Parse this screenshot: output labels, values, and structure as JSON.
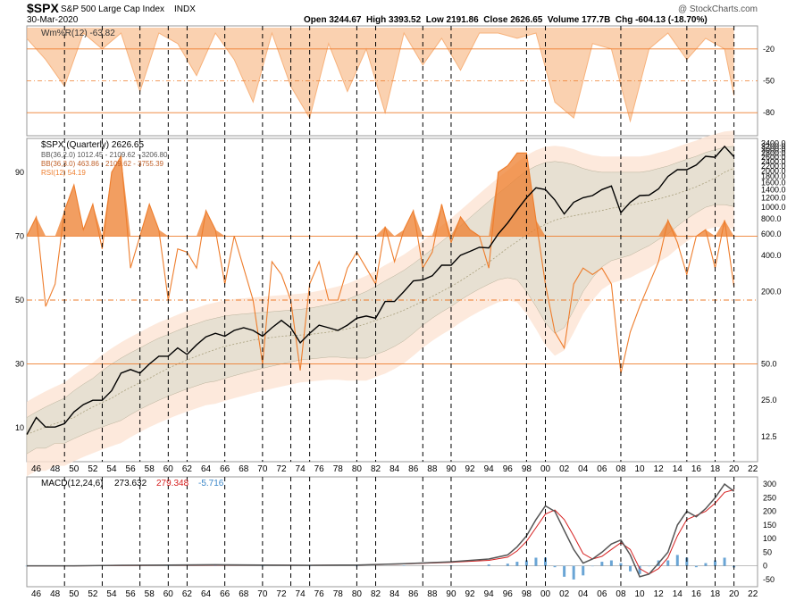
{
  "header": {
    "symbol": "$SPX",
    "name": "S&P 500 Large Cap Index",
    "exchange": "INDX",
    "date": "30-Mar-2020",
    "ohlc": "Open 3244.67  High 3393.52  Low 2191.86  Close 2626.65  Volume 177.7B  Chg -604.13 (-18.70%)",
    "watermark": "@ StockCharts.com"
  },
  "colors": {
    "orange": "#ee7d2c",
    "orange_fill": "#f7b27c",
    "orange_light": "#fde3d3",
    "band_fill": "#e4dfd0",
    "macd_line": "#555555",
    "signal_line": "#d62020",
    "hist": "#6aa5d5",
    "grid": "#cccccc"
  },
  "chart_data": [
    {
      "type": "area",
      "panel": "Williams %R",
      "legend": "Wm%R(12) -63.82",
      "y_ticks": [
        "-20",
        "-50",
        "-80"
      ],
      "ylim": [
        -100,
        0
      ],
      "reference_lines": [
        -20,
        -50,
        -80
      ],
      "x": [
        1945,
        1947,
        1949,
        1951,
        1953,
        1955,
        1957,
        1959,
        1961,
        1963,
        1965,
        1967,
        1969,
        1971,
        1973,
        1975,
        1977,
        1979,
        1981,
        1983,
        1985,
        1987,
        1989,
        1991,
        1993,
        1995,
        1997,
        1999,
        2001,
        2003,
        2005,
        2007,
        2009,
        2011,
        2013,
        2015,
        2017,
        2019,
        2020
      ],
      "values": [
        -10,
        -30,
        -55,
        -5,
        -20,
        -5,
        -60,
        -5,
        -15,
        -45,
        -5,
        -30,
        -70,
        -5,
        -55,
        -85,
        -15,
        -60,
        -20,
        -80,
        -5,
        -35,
        -10,
        -40,
        -5,
        -5,
        -10,
        -5,
        -70,
        -85,
        -15,
        -20,
        -88,
        -20,
        -5,
        -30,
        -10,
        -20,
        -63.82
      ]
    },
    {
      "type": "line",
      "panel": "Price",
      "scale": "log",
      "legend": [
        "$SPX (Quarterly) 2626.65",
        "BB(36,2.0) 1012.45 - 2109.62 - 3206.80",
        "BB(36,3.0) 463.86 - 2109.62 - 3755.39",
        "RSI(12) 54.19"
      ],
      "price_ticks": [
        "3400.0",
        "3200.0",
        "3000.0",
        "2800.0",
        "2600.0",
        "2400.0",
        "2200.0",
        "2000.0",
        "1800.0",
        "1600.0",
        "1400.0",
        "1200.0",
        "1000.0",
        "800.0",
        "600.0",
        "400.0",
        "200.0",
        "50.0",
        "25.0",
        "12.5"
      ],
      "rsi_ticks": [
        "90",
        "70",
        "50",
        "30",
        "10"
      ],
      "rsi_reference_lines": [
        70,
        50,
        30
      ],
      "x_ticks": [
        "46",
        "48",
        "50",
        "52",
        "54",
        "56",
        "58",
        "60",
        "62",
        "64",
        "66",
        "68",
        "70",
        "72",
        "74",
        "76",
        "78",
        "80",
        "82",
        "84",
        "86",
        "88",
        "90",
        "92",
        "94",
        "96",
        "98",
        "00",
        "02",
        "04",
        "06",
        "08",
        "10",
        "12",
        "14",
        "16",
        "18",
        "20",
        "22"
      ],
      "x": [
        1945,
        1946,
        1947,
        1948,
        1949,
        1950,
        1951,
        1952,
        1953,
        1954,
        1955,
        1956,
        1957,
        1958,
        1959,
        1960,
        1961,
        1962,
        1963,
        1964,
        1965,
        1966,
        1967,
        1968,
        1969,
        1970,
        1971,
        1972,
        1973,
        1974,
        1975,
        1976,
        1977,
        1978,
        1979,
        1980,
        1981,
        1982,
        1983,
        1984,
        1985,
        1986,
        1987,
        1988,
        1989,
        1990,
        1991,
        1992,
        1993,
        1994,
        1995,
        1996,
        1997,
        1998,
        1999,
        2000,
        2001,
        2002,
        2003,
        2004,
        2005,
        2006,
        2007,
        2008,
        2009,
        2010,
        2011,
        2012,
        2013,
        2014,
        2015,
        2016,
        2017,
        2018,
        2019,
        2020
      ],
      "spx": [
        13,
        18,
        15,
        15,
        16,
        20,
        23,
        25,
        25,
        30,
        42,
        45,
        42,
        50,
        58,
        58,
        68,
        60,
        72,
        84,
        90,
        85,
        95,
        100,
        95,
        85,
        100,
        115,
        100,
        75,
        90,
        105,
        100,
        95,
        105,
        120,
        125,
        120,
        165,
        165,
        200,
        245,
        250,
        270,
        330,
        330,
        400,
        430,
        465,
        460,
        600,
        740,
        950,
        1200,
        1450,
        1400,
        1150,
        880,
        1100,
        1200,
        1250,
        1400,
        1500,
        900,
        1100,
        1250,
        1260,
        1420,
        1800,
        2050,
        2050,
        2240,
        2650,
        2600,
        3200,
        2626.65
      ],
      "mid_band": [
        13,
        14,
        15,
        16,
        17,
        18,
        20,
        22,
        24,
        26,
        29,
        32,
        35,
        38,
        42,
        46,
        50,
        54,
        58,
        62,
        66,
        70,
        73,
        76,
        79,
        81,
        83,
        85,
        86,
        87,
        88,
        90,
        92,
        95,
        98,
        102,
        108,
        115,
        122,
        130,
        140,
        152,
        166,
        182,
        200,
        220,
        245,
        275,
        310,
        350,
        400,
        460,
        520,
        590,
        660,
        720,
        780,
        820,
        850,
        880,
        910,
        940,
        980,
        1010,
        1040,
        1080,
        1120,
        1170,
        1230,
        1300,
        1380,
        1480,
        1600,
        1750,
        1950,
        2109.62
      ],
      "bb2_upper": [
        18,
        20,
        22,
        24,
        26,
        30,
        34,
        38,
        44,
        50,
        56,
        62,
        68,
        75,
        82,
        88,
        95,
        102,
        108,
        115,
        120,
        125,
        128,
        130,
        132,
        134,
        136,
        138,
        140,
        142,
        145,
        150,
        156,
        163,
        172,
        185,
        200,
        220,
        245,
        270,
        300,
        340,
        390,
        450,
        520,
        600,
        700,
        820,
        960,
        1120,
        1300,
        1500,
        1750,
        2000,
        2200,
        2350,
        2400,
        2350,
        2250,
        2100,
        2000,
        1950,
        1950,
        1950,
        1950,
        1950,
        2000,
        2100,
        2200,
        2350,
        2500,
        2650,
        2850,
        3000,
        3150,
        3206.8
      ],
      "bb2_lower": [
        9,
        10,
        10,
        11,
        11,
        12,
        13,
        14,
        15,
        16,
        17,
        19,
        21,
        23,
        25,
        27,
        29,
        31,
        33,
        35,
        36,
        38,
        40,
        42,
        44,
        46,
        48,
        50,
        52,
        54,
        55,
        56,
        57,
        57,
        56,
        56,
        56,
        60,
        64,
        70,
        78,
        90,
        105,
        120,
        135,
        150,
        170,
        190,
        210,
        230,
        250,
        260,
        250,
        200,
        150,
        110,
        90,
        100,
        140,
        200,
        260,
        320,
        360,
        380,
        400,
        440,
        480,
        540,
        600,
        700,
        800,
        900,
        1000,
        1050,
        1050,
        1012.45
      ],
      "rsi": [
        70,
        76,
        48,
        55,
        78,
        86,
        72,
        80,
        66,
        90,
        95,
        60,
        70,
        80,
        72,
        50,
        66,
        65,
        60,
        78,
        72,
        55,
        70,
        60,
        50,
        30,
        62,
        58,
        50,
        28,
        55,
        62,
        50,
        50,
        60,
        65,
        60,
        55,
        73,
        62,
        72,
        78,
        60,
        65,
        80,
        68,
        76,
        72,
        70,
        60,
        90,
        92,
        96,
        96,
        75,
        55,
        40,
        35,
        55,
        60,
        58,
        60,
        55,
        27,
        40,
        48,
        55,
        62,
        75,
        68,
        58,
        70,
        72,
        60,
        75,
        54.19
      ]
    },
    {
      "type": "line",
      "panel": "MACD",
      "legend": {
        "label": "MACD(12,24,6)",
        "macd": "273.632",
        "signal": "279.348",
        "hist": "-5.716"
      },
      "y_ticks": [
        "300",
        "250",
        "200",
        "150",
        "100",
        "50",
        "0",
        "-50"
      ],
      "ylim": [
        -70,
        320
      ],
      "x": [
        1945,
        1950,
        1955,
        1960,
        1965,
        1970,
        1975,
        1980,
        1985,
        1990,
        1994,
        1996,
        1997,
        1998,
        1999,
        2000,
        2001,
        2002,
        2003,
        2004,
        2005,
        2006,
        2007,
        2008,
        2009,
        2010,
        2011,
        2012,
        2013,
        2014,
        2015,
        2016,
        2017,
        2018,
        2019,
        2020
      ],
      "macd": [
        0,
        0,
        2,
        3,
        4,
        3,
        2,
        3,
        8,
        15,
        25,
        40,
        70,
        110,
        170,
        220,
        200,
        130,
        60,
        10,
        25,
        50,
        80,
        95,
        40,
        -40,
        -30,
        10,
        50,
        150,
        200,
        180,
        210,
        250,
        300,
        273.632
      ],
      "signal": [
        0,
        0,
        1,
        2,
        3,
        3,
        2,
        3,
        7,
        13,
        20,
        32,
        55,
        90,
        140,
        190,
        205,
        170,
        110,
        45,
        25,
        35,
        60,
        85,
        60,
        -10,
        -30,
        -10,
        30,
        110,
        170,
        185,
        200,
        230,
        270,
        279.348
      ],
      "hist": [
        0,
        0,
        1,
        1,
        1,
        0,
        0,
        0,
        1,
        2,
        5,
        8,
        15,
        20,
        30,
        30,
        -5,
        -40,
        -50,
        -35,
        0,
        15,
        20,
        10,
        -20,
        -30,
        0,
        20,
        20,
        40,
        30,
        -5,
        10,
        20,
        30,
        -5.716
      ]
    }
  ],
  "x_axis_ticks": [
    "46",
    "48",
    "50",
    "52",
    "54",
    "56",
    "58",
    "60",
    "62",
    "64",
    "66",
    "68",
    "70",
    "72",
    "74",
    "76",
    "78",
    "80",
    "82",
    "84",
    "86",
    "88",
    "90",
    "92",
    "94",
    "96",
    "98",
    "00",
    "02",
    "04",
    "06",
    "08",
    "10",
    "12",
    "14",
    "16",
    "18",
    "20",
    "22"
  ],
  "cycle_lines": [
    1949,
    1953,
    1957,
    1960,
    1962,
    1966,
    1970,
    1973,
    1975,
    1980,
    1982,
    1987,
    1990,
    1998,
    2000,
    2008,
    2015,
    2018,
    2020
  ]
}
